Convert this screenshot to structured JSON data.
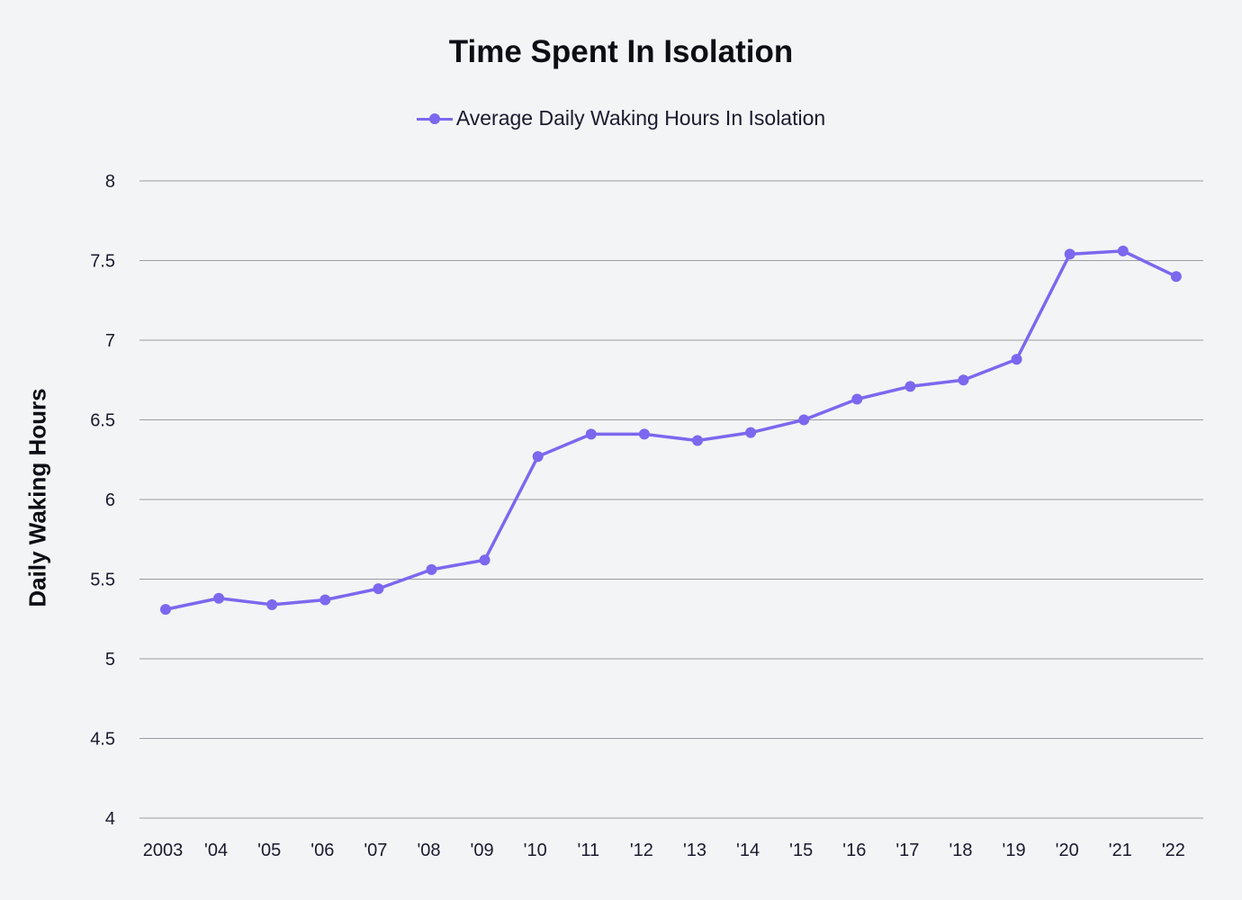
{
  "chart_data": {
    "type": "line",
    "title": "Time Spent In Isolation",
    "xlabel": "",
    "ylabel": "Daily Waking Hours",
    "categories": [
      "2003",
      "'04",
      "'05",
      "'06",
      "'07",
      "'08",
      "'09",
      "'10",
      "'11",
      "'12",
      "'13",
      "'14",
      "'15",
      "'16",
      "'17",
      "'18",
      "'19",
      "'20",
      "'21",
      "'22"
    ],
    "series": [
      {
        "name": "Average Daily Waking Hours In Isolation",
        "color": "#7b68ee",
        "values": [
          5.31,
          5.38,
          5.34,
          5.37,
          5.44,
          5.56,
          5.62,
          6.27,
          6.41,
          6.41,
          6.37,
          6.42,
          6.5,
          6.63,
          6.71,
          6.75,
          6.88,
          7.54,
          7.56,
          7.4
        ]
      }
    ],
    "ylim": [
      4,
      8
    ],
    "yticks": [
      "4",
      "4.5",
      "5",
      "5.5",
      "6",
      "6.5",
      "7",
      "7.5",
      "8"
    ],
    "grid": true,
    "legend_position": "top-center"
  },
  "colors": {
    "background": "#f3f4f6",
    "grid": "#9a9ca3",
    "series": "#7b68ee"
  }
}
